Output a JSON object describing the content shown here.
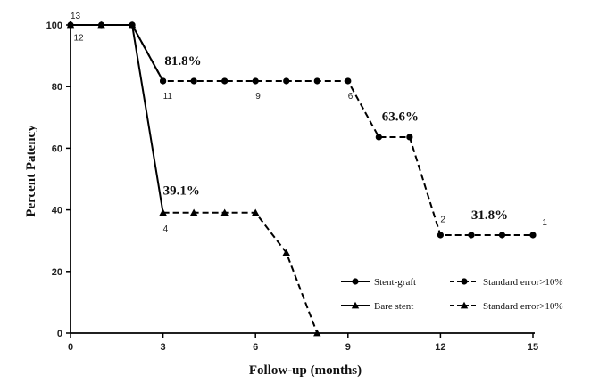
{
  "chart_data": {
    "type": "line",
    "xlabel": "Follow-up  (months)",
    "ylabel": "Percent Patency",
    "xlim": [
      0,
      15
    ],
    "ylim": [
      0,
      100
    ],
    "x_ticks": [
      "0",
      "3",
      "6",
      "9",
      "12",
      "15"
    ],
    "y_ticks": [
      "0",
      "20",
      "40",
      "60",
      "80",
      "100"
    ],
    "grid": false,
    "legend_position": "bottom-right",
    "series": [
      {
        "name": "Stent-graft",
        "marker": "circle",
        "style": "solid",
        "points": [
          [
            0,
            100
          ],
          [
            1,
            100
          ],
          [
            2,
            100
          ],
          [
            3,
            81.8
          ]
        ]
      },
      {
        "name": "Standard error>10%",
        "marker": "circle",
        "style": "dashed",
        "points": [
          [
            2,
            100
          ],
          [
            3,
            81.8
          ],
          [
            4,
            81.8
          ],
          [
            5,
            81.8
          ],
          [
            6,
            81.8
          ],
          [
            7,
            81.8
          ],
          [
            8,
            81.8
          ],
          [
            9,
            81.8
          ],
          [
            10,
            63.6
          ],
          [
            11,
            63.6
          ],
          [
            12,
            31.8
          ],
          [
            13,
            31.8
          ],
          [
            14,
            31.8
          ],
          [
            15,
            31.8
          ]
        ]
      },
      {
        "name": "Bare stent",
        "marker": "triangle",
        "style": "solid",
        "points": [
          [
            0,
            100
          ],
          [
            1,
            100
          ],
          [
            2,
            100
          ],
          [
            3,
            39.1
          ]
        ]
      },
      {
        "name": "Standard error>10%",
        "marker": "triangle",
        "style": "dashed",
        "points": [
          [
            3,
            39.1
          ],
          [
            4,
            39.1
          ],
          [
            5,
            39.1
          ],
          [
            6,
            39.1
          ],
          [
            7,
            26.1
          ],
          [
            8,
            0
          ]
        ]
      }
    ],
    "annotations": [
      {
        "text": "81.8%",
        "x": 3.05,
        "y": 87
      },
      {
        "text": "63.6%",
        "x": 10.1,
        "y": 69
      },
      {
        "text": "39.1%",
        "x": 3.0,
        "y": 45
      },
      {
        "text": "31.8%",
        "x": 13.0,
        "y": 37
      }
    ],
    "risk_labels": [
      {
        "text": "13",
        "x": 0.0,
        "y": 102
      },
      {
        "text": "12",
        "x": 0.1,
        "y": 95
      },
      {
        "text": "11",
        "x": 3.0,
        "y": 76
      },
      {
        "text": "9",
        "x": 6.0,
        "y": 76
      },
      {
        "text": "6",
        "x": 9.0,
        "y": 76
      },
      {
        "text": "4",
        "x": 3.0,
        "y": 33
      },
      {
        "text": "2",
        "x": 12.0,
        "y": 36
      },
      {
        "text": "1",
        "x": 15.3,
        "y": 35
      }
    ]
  }
}
